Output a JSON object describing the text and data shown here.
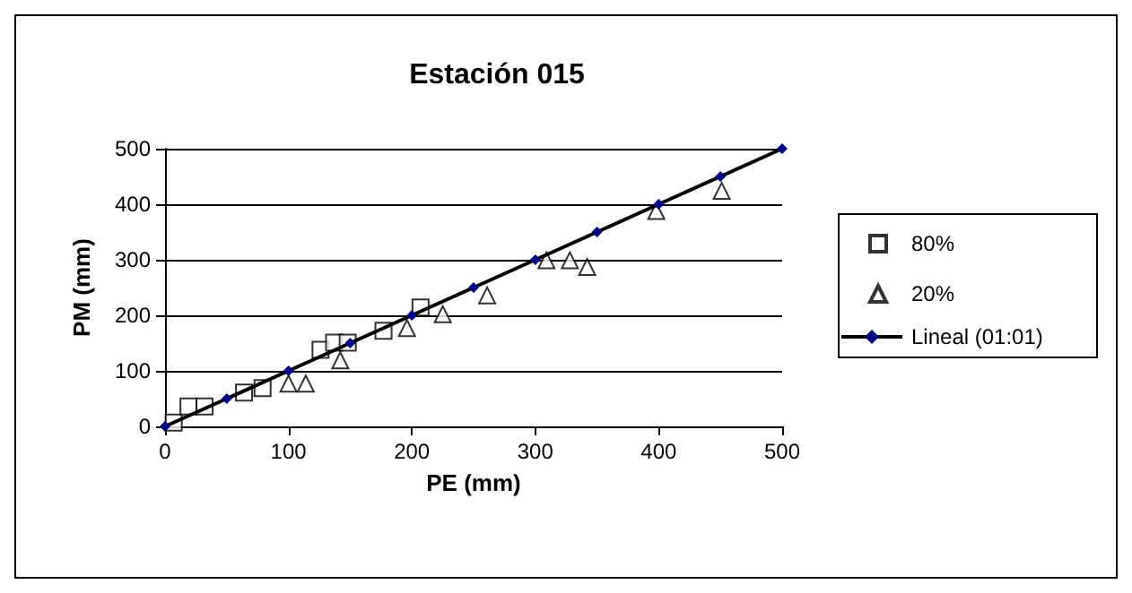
{
  "chart_data": {
    "type": "scatter",
    "title": "Estación 015",
    "xlabel": "PE (mm)",
    "ylabel": "PM (mm)",
    "xlim": [
      0,
      500
    ],
    "ylim": [
      0,
      500
    ],
    "xticks": [
      0,
      100,
      200,
      300,
      400,
      500
    ],
    "yticks": [
      0,
      100,
      200,
      300,
      400,
      500
    ],
    "grid": "y",
    "legend": "right",
    "series": [
      {
        "name": "80%",
        "color": "#000000",
        "marker": "square",
        "x": [
          7,
          19,
          32,
          64,
          79,
          126,
          137,
          148,
          177,
          207
        ],
        "values": [
          7,
          36,
          36,
          61,
          69,
          138,
          151,
          151,
          172,
          214
        ]
      },
      {
        "name": "20%",
        "color": "#000000",
        "marker": "triangle",
        "x": [
          100,
          114,
          142,
          196,
          225,
          261,
          309,
          328,
          342,
          398,
          451
        ],
        "values": [
          77,
          77,
          119,
          177,
          202,
          236,
          299,
          299,
          287,
          388,
          424
        ]
      },
      {
        "name": "Lineal (01:01)",
        "type": "line",
        "color": "#000000",
        "marker": "diamond",
        "line_style": "solid",
        "x": [
          0,
          50,
          100,
          150,
          200,
          250,
          300,
          350,
          400,
          450,
          500
        ],
        "values": [
          0,
          50,
          100,
          150,
          200,
          250,
          300,
          350,
          400,
          450,
          500
        ]
      }
    ]
  }
}
